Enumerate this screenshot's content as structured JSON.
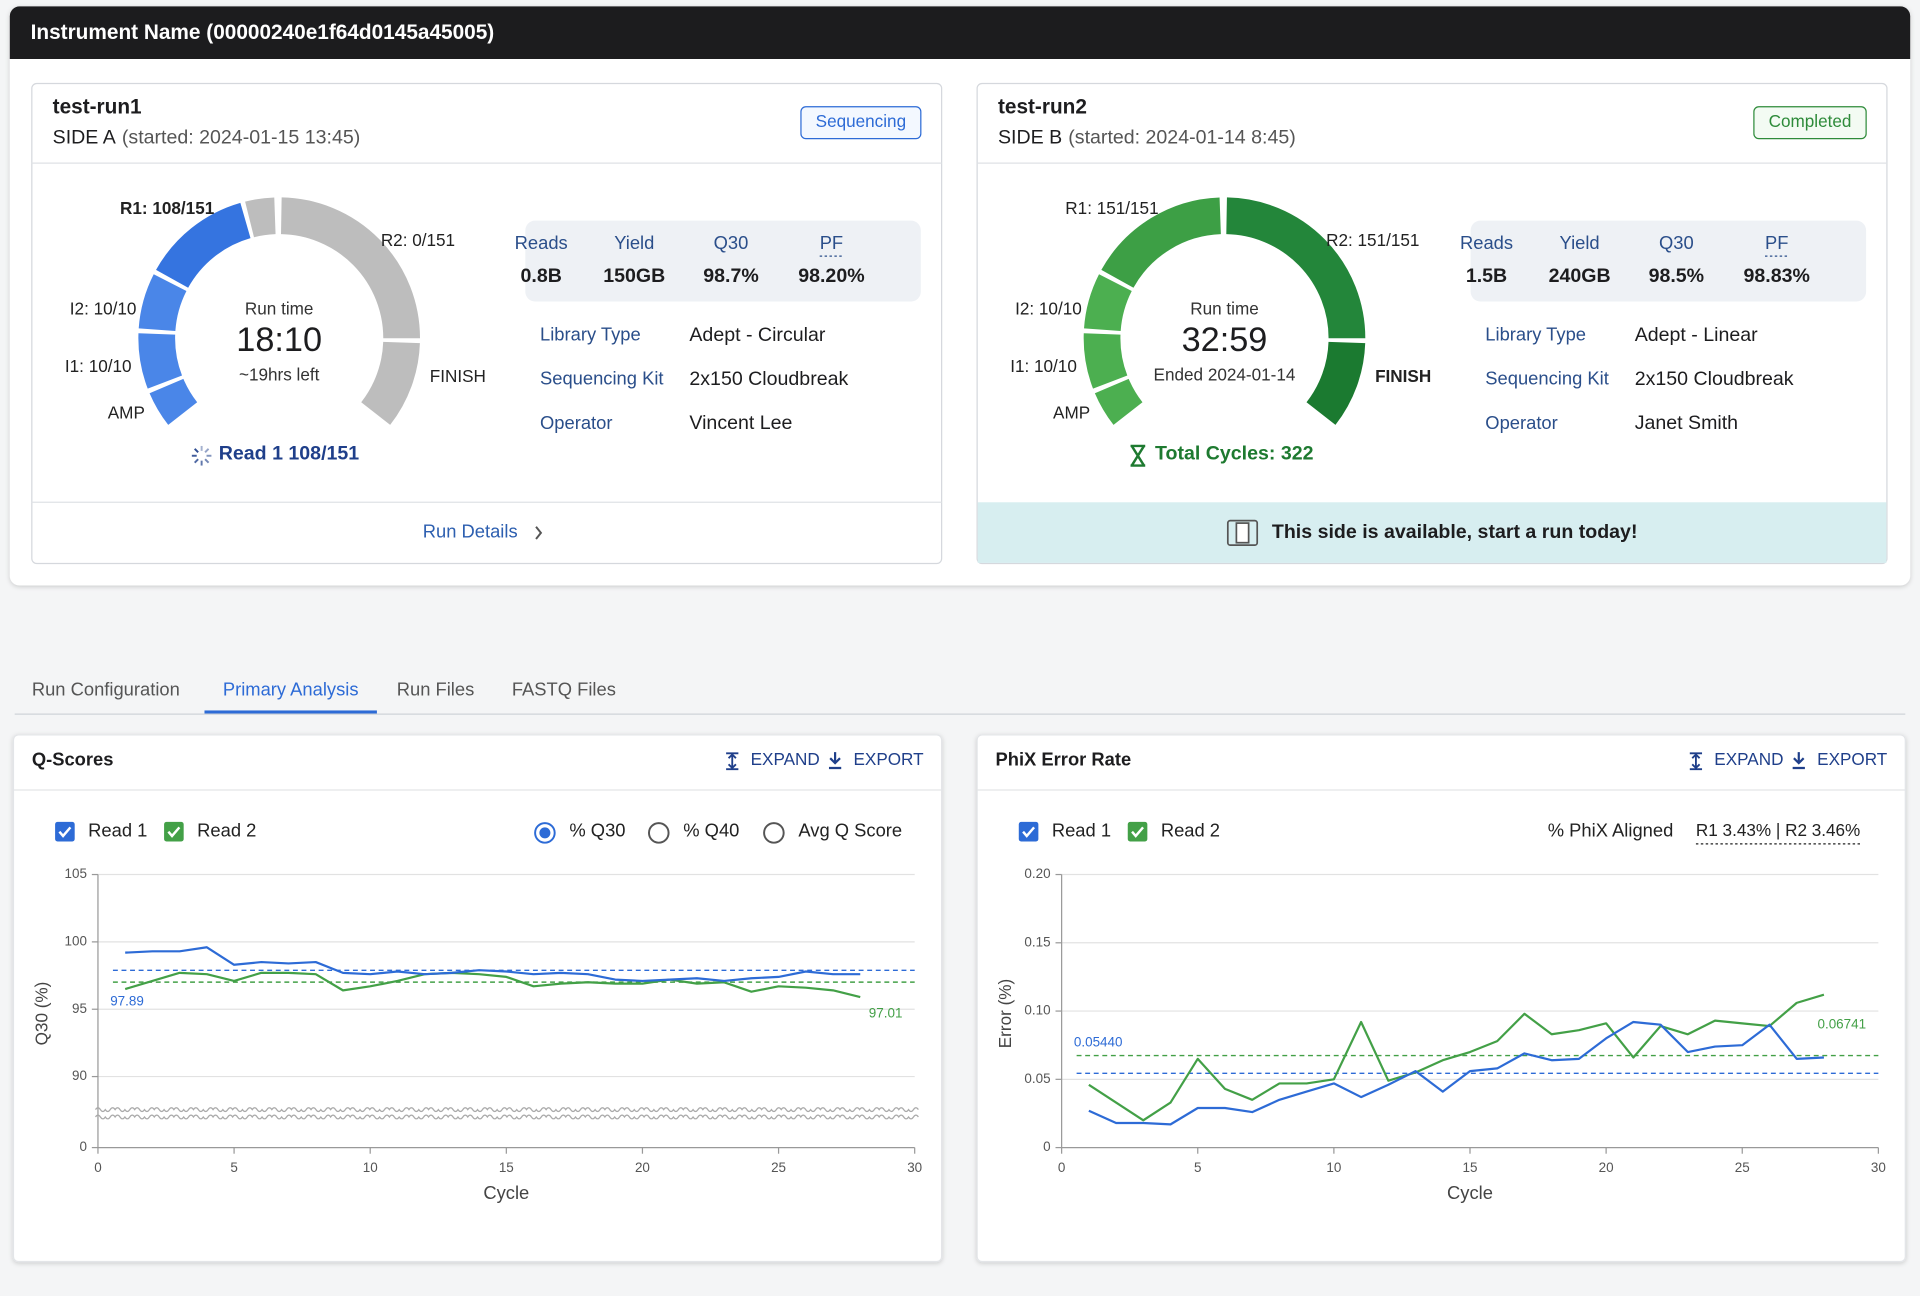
{
  "header": {
    "title": "Instrument Name (00000240e1f64d0145a45005)"
  },
  "runs": [
    {
      "name": "test-run1",
      "side": "SIDE A",
      "started": "(started: 2024-01-15 13:45)",
      "status": "Sequencing",
      "status_color": "#2d6bd6",
      "status_bg": "#f3f8ff",
      "gauge": {
        "r1": "R1: 108/151",
        "r2": "R2: 0/151",
        "i2": "I2: 10/10",
        "i1": "I1: 10/10",
        "amp": "AMP",
        "finish": "FINISH",
        "title": "Run time",
        "time": "18:10",
        "note": "~19hrs left"
      },
      "gauge_colors": [
        "#4a86e8",
        "#4a86e8",
        "#4a86e8",
        "#3574e0",
        "#bdbdbd",
        "#bdbdbd"
      ],
      "progress": "Read 1 108/151",
      "progress_color": "#1f3f8a",
      "metrics": [
        {
          "label": "Reads",
          "value": "0.8B"
        },
        {
          "label": "Yield",
          "value": "150GB"
        },
        {
          "label": "Q30",
          "value": "98.7%"
        },
        {
          "label": "PF",
          "value": "98.20%"
        }
      ],
      "details": [
        {
          "label": "Library Type",
          "value": "Adept - Circular"
        },
        {
          "label": "Sequencing Kit",
          "value": "2x150 Cloudbreak"
        },
        {
          "label": "Operator",
          "value": "Vincent Lee"
        }
      ],
      "footer": {
        "text": "Run Details",
        "style": "link"
      }
    },
    {
      "name": "test-run2",
      "side": "SIDE B",
      "started": "(started: 2024-01-14 8:45)",
      "status": "Completed",
      "status_color": "#2e8b3a",
      "status_bg": "#f3fbf3",
      "gauge": {
        "r1": "R1: 151/151",
        "r2": "R2: 151/151",
        "i2": "I2: 10/10",
        "i1": "I1: 10/10",
        "amp": "AMP",
        "finish": "FINISH",
        "title": "Run time",
        "time": "32:59",
        "note": "Ended 2024-01-14"
      },
      "gauge_colors": [
        "#4caf50",
        "#4caf50",
        "#4caf50",
        "#3d9f45",
        "#23863a",
        "#1b7a30"
      ],
      "progress": "Total Cycles: 322",
      "progress_color": "#1e7a30",
      "metrics": [
        {
          "label": "Reads",
          "value": "1.5B"
        },
        {
          "label": "Yield",
          "value": "240GB"
        },
        {
          "label": "Q30",
          "value": "98.5%"
        },
        {
          "label": "PF",
          "value": "98.83%"
        }
      ],
      "details": [
        {
          "label": "Library Type",
          "value": "Adept - Linear"
        },
        {
          "label": "Sequencing Kit",
          "value": "2x150 Cloudbreak"
        },
        {
          "label": "Operator",
          "value": "Janet Smith"
        }
      ],
      "footer": {
        "text": "This side is available, start a run today!",
        "style": "banner"
      }
    }
  ],
  "tabs": [
    {
      "label": "Run Configuration",
      "active": false
    },
    {
      "label": "Primary Analysis",
      "active": true
    },
    {
      "label": "Run Files",
      "active": false
    },
    {
      "label": "FASTQ Files",
      "active": false
    }
  ],
  "chart_data": [
    {
      "type": "line",
      "title": "Q-Scores",
      "actions": [
        "EXPAND",
        "EXPORT"
      ],
      "options": [
        {
          "label": "% Q30",
          "selected": true
        },
        {
          "label": "% Q40",
          "selected": false
        },
        {
          "label": "Avg Q Score",
          "selected": false
        }
      ],
      "x_label": "Cycle",
      "y_label": "Q30 (%)",
      "xlim": [
        0,
        30
      ],
      "xticks": [
        0,
        5,
        10,
        15,
        20,
        25,
        30
      ],
      "ylim": [
        0,
        105
      ],
      "yticks": [
        0,
        90,
        95,
        100,
        105
      ],
      "axis_break": true,
      "grid": true,
      "x": [
        1,
        2,
        3,
        4,
        5,
        6,
        7,
        8,
        9,
        10,
        11,
        12,
        13,
        14,
        15,
        16,
        17,
        18,
        19,
        20,
        21,
        22,
        23,
        24,
        25,
        26,
        27,
        28
      ],
      "series": [
        {
          "name": "Read 1",
          "color": "#2d6bd6",
          "values": [
            99.2,
            99.3,
            99.3,
            99.6,
            98.3,
            98.5,
            98.4,
            98.5,
            97.7,
            97.6,
            97.8,
            97.6,
            97.7,
            97.9,
            97.8,
            97.6,
            97.7,
            97.6,
            97.2,
            97.1,
            97.2,
            97.3,
            97.1,
            97.3,
            97.4,
            97.8,
            97.6,
            97.6
          ]
        },
        {
          "name": "Read 2",
          "color": "#43a047",
          "values": [
            96.5,
            97.1,
            97.7,
            97.6,
            97.1,
            97.7,
            97.7,
            97.6,
            96.4,
            96.7,
            97.1,
            97.6,
            97.7,
            97.6,
            97.4,
            96.7,
            96.9,
            97.0,
            96.9,
            96.9,
            97.2,
            96.9,
            97.0,
            96.3,
            96.7,
            96.6,
            96.4,
            95.9
          ]
        }
      ],
      "reference_lines": [
        {
          "value": 97.89,
          "color": "#2d6bd6"
        },
        {
          "value": 97.01,
          "color": "#43a047"
        }
      ]
    },
    {
      "type": "line",
      "title": "PhiX Error Rate",
      "actions": [
        "EXPAND",
        "EXPORT"
      ],
      "summary_label": "% PhiX Aligned",
      "summary_value": "R1 3.43% | R2 3.46%",
      "x_label": "Cycle",
      "y_label": "Error (%)",
      "xlim": [
        0,
        30
      ],
      "xticks": [
        0,
        5,
        10,
        15,
        20,
        25,
        30
      ],
      "ylim": [
        0,
        0.2
      ],
      "yticks": [
        0,
        0.05,
        {
          "value": 0.1,
          "label": "0.10"
        },
        0.15,
        {
          "value": 0.2,
          "label": "0.20"
        }
      ],
      "grid": true,
      "x": [
        1,
        2,
        3,
        4,
        5,
        6,
        7,
        8,
        9,
        10,
        11,
        12,
        13,
        14,
        15,
        16,
        17,
        18,
        19,
        20,
        21,
        22,
        23,
        24,
        25,
        26,
        27,
        28
      ],
      "series": [
        {
          "name": "Read 1",
          "color": "#2d6bd6",
          "values": [
            0.027,
            0.018,
            0.018,
            0.017,
            0.029,
            0.029,
            0.026,
            0.035,
            0.041,
            0.047,
            0.037,
            0.046,
            0.056,
            0.041,
            0.056,
            0.058,
            0.069,
            0.064,
            0.065,
            0.08,
            0.092,
            0.09,
            0.07,
            0.074,
            0.075,
            0.09,
            0.065,
            0.066
          ]
        },
        {
          "name": "Read 2",
          "color": "#43a047",
          "values": [
            0.046,
            0.033,
            0.02,
            0.033,
            0.065,
            0.043,
            0.035,
            0.047,
            0.047,
            0.05,
            0.092,
            0.049,
            0.055,
            0.064,
            0.07,
            0.078,
            0.098,
            0.083,
            0.086,
            0.091,
            0.066,
            0.089,
            0.083,
            0.093,
            0.091,
            0.089,
            0.106,
            0.112
          ]
        }
      ],
      "reference_lines": [
        {
          "value": 0.0544,
          "label": "0.05440",
          "color": "#2d6bd6"
        },
        {
          "value": 0.06741,
          "color": "#43a047"
        }
      ]
    }
  ]
}
